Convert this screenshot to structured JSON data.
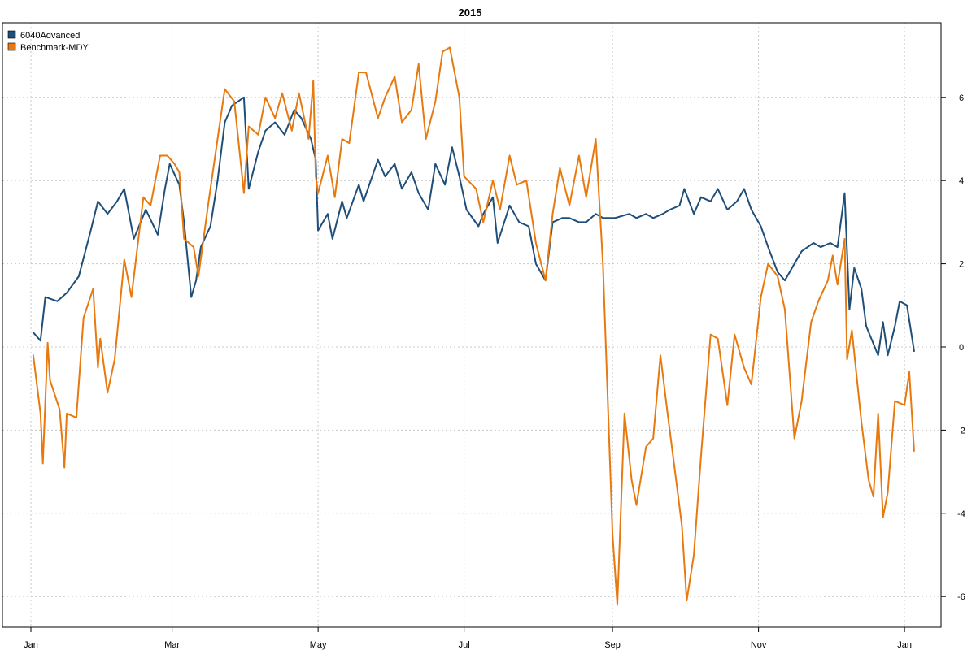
{
  "chart_data": {
    "type": "line",
    "title": "2015",
    "xlabel": "",
    "ylabel": "",
    "ylim": [
      -6.5,
      7.7
    ],
    "xlim": [
      "2015-01-01",
      "2016-01-03"
    ],
    "grid": true,
    "legend_position": "top-left",
    "x_ticks": [
      {
        "label": "Jan",
        "date": "2015-01-01"
      },
      {
        "label": "Mar",
        "date": "2015-03-01"
      },
      {
        "label": "May",
        "date": "2015-05-01"
      },
      {
        "label": "Jul",
        "date": "2015-07-01"
      },
      {
        "label": "Sep",
        "date": "2015-09-01"
      },
      {
        "label": "Nov",
        "date": "2015-11-01"
      },
      {
        "label": "Jan",
        "date": "2016-01-01"
      }
    ],
    "y_ticks": [
      6,
      4,
      2,
      0,
      -2,
      -4,
      -6
    ],
    "series": [
      {
        "name": "6040Advanced",
        "color": "#1f4e79",
        "points": [
          [
            "2015-01-02",
            0.35
          ],
          [
            "2015-01-05",
            0.15
          ],
          [
            "2015-01-07",
            1.2
          ],
          [
            "2015-01-12",
            1.1
          ],
          [
            "2015-01-16",
            1.3
          ],
          [
            "2015-01-21",
            1.7
          ],
          [
            "2015-01-26",
            2.8
          ],
          [
            "2015-01-29",
            3.5
          ],
          [
            "2015-02-02",
            3.2
          ],
          [
            "2015-02-06",
            3.5
          ],
          [
            "2015-02-09",
            3.8
          ],
          [
            "2015-02-13",
            2.6
          ],
          [
            "2015-02-18",
            3.3
          ],
          [
            "2015-02-23",
            2.7
          ],
          [
            "2015-02-26",
            3.8
          ],
          [
            "2015-02-28",
            4.4
          ],
          [
            "2015-03-04",
            3.9
          ],
          [
            "2015-03-06",
            3.0
          ],
          [
            "2015-03-09",
            1.2
          ],
          [
            "2015-03-11",
            1.6
          ],
          [
            "2015-03-13",
            2.4
          ],
          [
            "2015-03-17",
            2.9
          ],
          [
            "2015-03-20",
            4.0
          ],
          [
            "2015-03-23",
            5.4
          ],
          [
            "2015-03-26",
            5.8
          ],
          [
            "2015-03-31",
            6.0
          ],
          [
            "2015-04-02",
            3.8
          ],
          [
            "2015-04-06",
            4.7
          ],
          [
            "2015-04-09",
            5.2
          ],
          [
            "2015-04-13",
            5.4
          ],
          [
            "2015-04-17",
            5.1
          ],
          [
            "2015-04-21",
            5.7
          ],
          [
            "2015-04-24",
            5.5
          ],
          [
            "2015-04-28",
            5.0
          ],
          [
            "2015-04-30",
            4.5
          ],
          [
            "2015-05-01",
            2.8
          ],
          [
            "2015-05-05",
            3.2
          ],
          [
            "2015-05-07",
            2.6
          ],
          [
            "2015-05-11",
            3.5
          ],
          [
            "2015-05-13",
            3.1
          ],
          [
            "2015-05-18",
            3.9
          ],
          [
            "2015-05-20",
            3.5
          ],
          [
            "2015-05-26",
            4.5
          ],
          [
            "2015-05-29",
            4.1
          ],
          [
            "2015-06-02",
            4.4
          ],
          [
            "2015-06-05",
            3.8
          ],
          [
            "2015-06-09",
            4.2
          ],
          [
            "2015-06-12",
            3.7
          ],
          [
            "2015-06-16",
            3.3
          ],
          [
            "2015-06-19",
            4.4
          ],
          [
            "2015-06-23",
            3.9
          ],
          [
            "2015-06-26",
            4.8
          ],
          [
            "2015-06-29",
            4.1
          ],
          [
            "2015-07-02",
            3.3
          ],
          [
            "2015-07-07",
            2.9
          ],
          [
            "2015-07-09",
            3.2
          ],
          [
            "2015-07-13",
            3.6
          ],
          [
            "2015-07-15",
            2.5
          ],
          [
            "2015-07-20",
            3.4
          ],
          [
            "2015-07-24",
            3.0
          ],
          [
            "2015-07-28",
            2.9
          ],
          [
            "2015-07-31",
            2.0
          ],
          [
            "2015-08-04",
            1.6
          ],
          [
            "2015-08-07",
            3.0
          ],
          [
            "2015-08-11",
            3.1
          ],
          [
            "2015-08-14",
            3.1
          ],
          [
            "2015-08-18",
            3.0
          ],
          [
            "2015-08-21",
            3.0
          ],
          [
            "2015-08-25",
            3.2
          ],
          [
            "2015-08-28",
            3.1
          ],
          [
            "2015-09-02",
            3.1
          ],
          [
            "2015-09-08",
            3.2
          ],
          [
            "2015-09-11",
            3.1
          ],
          [
            "2015-09-15",
            3.2
          ],
          [
            "2015-09-18",
            3.1
          ],
          [
            "2015-09-22",
            3.2
          ],
          [
            "2015-09-25",
            3.3
          ],
          [
            "2015-09-29",
            3.4
          ],
          [
            "2015-10-01",
            3.8
          ],
          [
            "2015-10-05",
            3.2
          ],
          [
            "2015-10-08",
            3.6
          ],
          [
            "2015-10-12",
            3.5
          ],
          [
            "2015-10-15",
            3.8
          ],
          [
            "2015-10-19",
            3.3
          ],
          [
            "2015-10-23",
            3.5
          ],
          [
            "2015-10-26",
            3.8
          ],
          [
            "2015-10-29",
            3.3
          ],
          [
            "2015-11-02",
            2.9
          ],
          [
            "2015-11-05",
            2.4
          ],
          [
            "2015-11-09",
            1.8
          ],
          [
            "2015-11-12",
            1.6
          ],
          [
            "2015-11-16",
            2.0
          ],
          [
            "2015-11-19",
            2.3
          ],
          [
            "2015-11-24",
            2.5
          ],
          [
            "2015-11-27",
            2.4
          ],
          [
            "2015-12-01",
            2.5
          ],
          [
            "2015-12-04",
            2.4
          ],
          [
            "2015-12-07",
            3.7
          ],
          [
            "2015-12-09",
            0.9
          ],
          [
            "2015-12-11",
            1.9
          ],
          [
            "2015-12-14",
            1.4
          ],
          [
            "2015-12-16",
            0.5
          ],
          [
            "2015-12-21",
            -0.2
          ],
          [
            "2015-12-23",
            0.6
          ],
          [
            "2015-12-25",
            -0.2
          ],
          [
            "2015-12-28",
            0.5
          ],
          [
            "2015-12-30",
            1.1
          ],
          [
            "2016-01-02",
            1.0
          ],
          [
            "2016-01-05",
            -0.1
          ]
        ]
      },
      {
        "name": "Benchmark-MDY",
        "color": "#e8790f",
        "points": [
          [
            "2015-01-02",
            -0.2
          ],
          [
            "2015-01-05",
            -1.6
          ],
          [
            "2015-01-06",
            -2.8
          ],
          [
            "2015-01-08",
            0.1
          ],
          [
            "2015-01-09",
            -0.8
          ],
          [
            "2015-01-13",
            -1.5
          ],
          [
            "2015-01-15",
            -2.9
          ],
          [
            "2015-01-16",
            -1.6
          ],
          [
            "2015-01-20",
            -1.7
          ],
          [
            "2015-01-23",
            0.7
          ],
          [
            "2015-01-27",
            1.4
          ],
          [
            "2015-01-29",
            -0.5
          ],
          [
            "2015-01-30",
            0.2
          ],
          [
            "2015-02-02",
            -1.1
          ],
          [
            "2015-02-05",
            -0.3
          ],
          [
            "2015-02-09",
            2.1
          ],
          [
            "2015-02-12",
            1.2
          ],
          [
            "2015-02-17",
            3.6
          ],
          [
            "2015-02-20",
            3.4
          ],
          [
            "2015-02-24",
            4.6
          ],
          [
            "2015-02-27",
            4.6
          ],
          [
            "2015-03-02",
            4.4
          ],
          [
            "2015-03-04",
            4.2
          ],
          [
            "2015-03-06",
            2.6
          ],
          [
            "2015-03-10",
            2.4
          ],
          [
            "2015-03-12",
            1.7
          ],
          [
            "2015-03-16",
            3.4
          ],
          [
            "2015-03-20",
            5.0
          ],
          [
            "2015-03-23",
            6.2
          ],
          [
            "2015-03-27",
            5.9
          ],
          [
            "2015-03-31",
            3.7
          ],
          [
            "2015-04-02",
            5.3
          ],
          [
            "2015-04-06",
            5.1
          ],
          [
            "2015-04-09",
            6.0
          ],
          [
            "2015-04-13",
            5.5
          ],
          [
            "2015-04-16",
            6.1
          ],
          [
            "2015-04-20",
            5.2
          ],
          [
            "2015-04-23",
            6.1
          ],
          [
            "2015-04-27",
            5.0
          ],
          [
            "2015-04-29",
            6.4
          ],
          [
            "2015-04-30",
            4.1
          ],
          [
            "2015-05-01",
            3.7
          ],
          [
            "2015-05-05",
            4.6
          ],
          [
            "2015-05-08",
            3.6
          ],
          [
            "2015-05-11",
            5.0
          ],
          [
            "2015-05-14",
            4.9
          ],
          [
            "2015-05-18",
            6.6
          ],
          [
            "2015-05-21",
            6.6
          ],
          [
            "2015-05-26",
            5.5
          ],
          [
            "2015-05-29",
            6.0
          ],
          [
            "2015-06-02",
            6.5
          ],
          [
            "2015-06-05",
            5.4
          ],
          [
            "2015-06-09",
            5.7
          ],
          [
            "2015-06-12",
            6.8
          ],
          [
            "2015-06-15",
            5.0
          ],
          [
            "2015-06-19",
            5.9
          ],
          [
            "2015-06-22",
            7.1
          ],
          [
            "2015-06-25",
            7.2
          ],
          [
            "2015-06-29",
            6.0
          ],
          [
            "2015-07-01",
            4.1
          ],
          [
            "2015-07-06",
            3.8
          ],
          [
            "2015-07-09",
            3.0
          ],
          [
            "2015-07-13",
            4.0
          ],
          [
            "2015-07-16",
            3.3
          ],
          [
            "2015-07-20",
            4.6
          ],
          [
            "2015-07-23",
            3.9
          ],
          [
            "2015-07-27",
            4.0
          ],
          [
            "2015-07-31",
            2.5
          ],
          [
            "2015-08-04",
            1.6
          ],
          [
            "2015-08-07",
            3.2
          ],
          [
            "2015-08-10",
            4.3
          ],
          [
            "2015-08-14",
            3.4
          ],
          [
            "2015-08-18",
            4.6
          ],
          [
            "2015-08-21",
            3.6
          ],
          [
            "2015-08-25",
            5.0
          ],
          [
            "2015-08-28",
            2.0
          ],
          [
            "2015-09-01",
            -4.5
          ],
          [
            "2015-09-03",
            -6.2
          ],
          [
            "2015-09-06",
            -1.6
          ],
          [
            "2015-09-09",
            -3.2
          ],
          [
            "2015-09-11",
            -3.8
          ],
          [
            "2015-09-15",
            -2.4
          ],
          [
            "2015-09-18",
            -2.2
          ],
          [
            "2015-09-21",
            -0.2
          ],
          [
            "2015-09-24",
            -1.6
          ],
          [
            "2015-09-28",
            -3.4
          ],
          [
            "2015-09-30",
            -4.3
          ],
          [
            "2015-10-02",
            -6.1
          ],
          [
            "2015-10-05",
            -5.0
          ],
          [
            "2015-10-08",
            -2.6
          ],
          [
            "2015-10-12",
            0.3
          ],
          [
            "2015-10-15",
            0.2
          ],
          [
            "2015-10-19",
            -1.4
          ],
          [
            "2015-10-22",
            0.3
          ],
          [
            "2015-10-26",
            -0.5
          ],
          [
            "2015-10-29",
            -0.9
          ],
          [
            "2015-11-02",
            1.2
          ],
          [
            "2015-11-05",
            2.0
          ],
          [
            "2015-11-09",
            1.7
          ],
          [
            "2015-11-12",
            0.9
          ],
          [
            "2015-11-16",
            -2.2
          ],
          [
            "2015-11-19",
            -1.3
          ],
          [
            "2015-11-23",
            0.6
          ],
          [
            "2015-11-26",
            1.1
          ],
          [
            "2015-11-30",
            1.6
          ],
          [
            "2015-12-02",
            2.2
          ],
          [
            "2015-12-04",
            1.5
          ],
          [
            "2015-12-07",
            2.6
          ],
          [
            "2015-12-08",
            -0.3
          ],
          [
            "2015-12-10",
            0.4
          ],
          [
            "2015-12-14",
            -1.8
          ],
          [
            "2015-12-17",
            -3.2
          ],
          [
            "2015-12-19",
            -3.6
          ],
          [
            "2015-12-21",
            -1.6
          ],
          [
            "2015-12-23",
            -4.1
          ],
          [
            "2015-12-25",
            -3.5
          ],
          [
            "2015-12-28",
            -1.3
          ],
          [
            "2016-01-01",
            -1.4
          ],
          [
            "2016-01-03",
            -0.6
          ],
          [
            "2016-01-05",
            -2.5
          ]
        ]
      }
    ]
  }
}
